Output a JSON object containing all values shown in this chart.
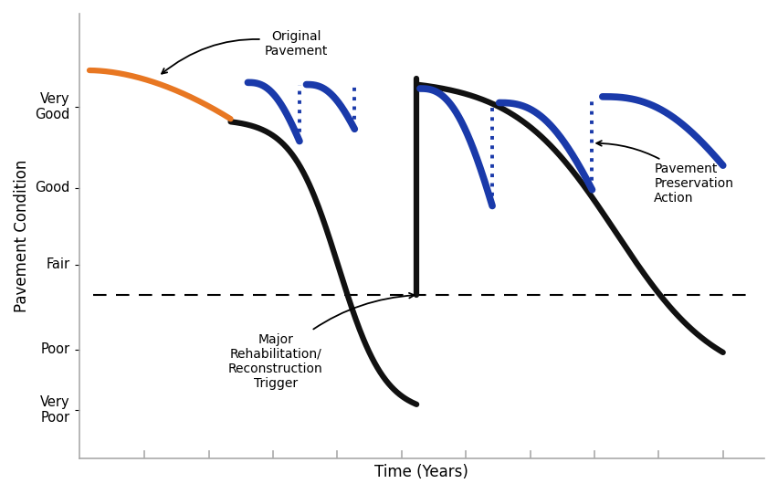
{
  "title": "",
  "xlabel": "Time (Years)",
  "ylabel": "Pavement Condition",
  "ytick_labels": [
    "Very\nPoor",
    "Poor",
    "Fair",
    "Good",
    "Very\nGood"
  ],
  "ytick_positions": [
    0.07,
    0.22,
    0.43,
    0.62,
    0.82
  ],
  "background_color": "#ffffff",
  "orange_color": "#E87722",
  "blue_color": "#1a3aaa",
  "black_color": "#111111",
  "dashed_line_y": 0.355,
  "annotation_original": "Original\nPavement",
  "annotation_rehab": "Major\nRehabilitation/\nReconstruction\nTrigger",
  "annotation_preservation": "Pavement\nPreservation\nAction"
}
